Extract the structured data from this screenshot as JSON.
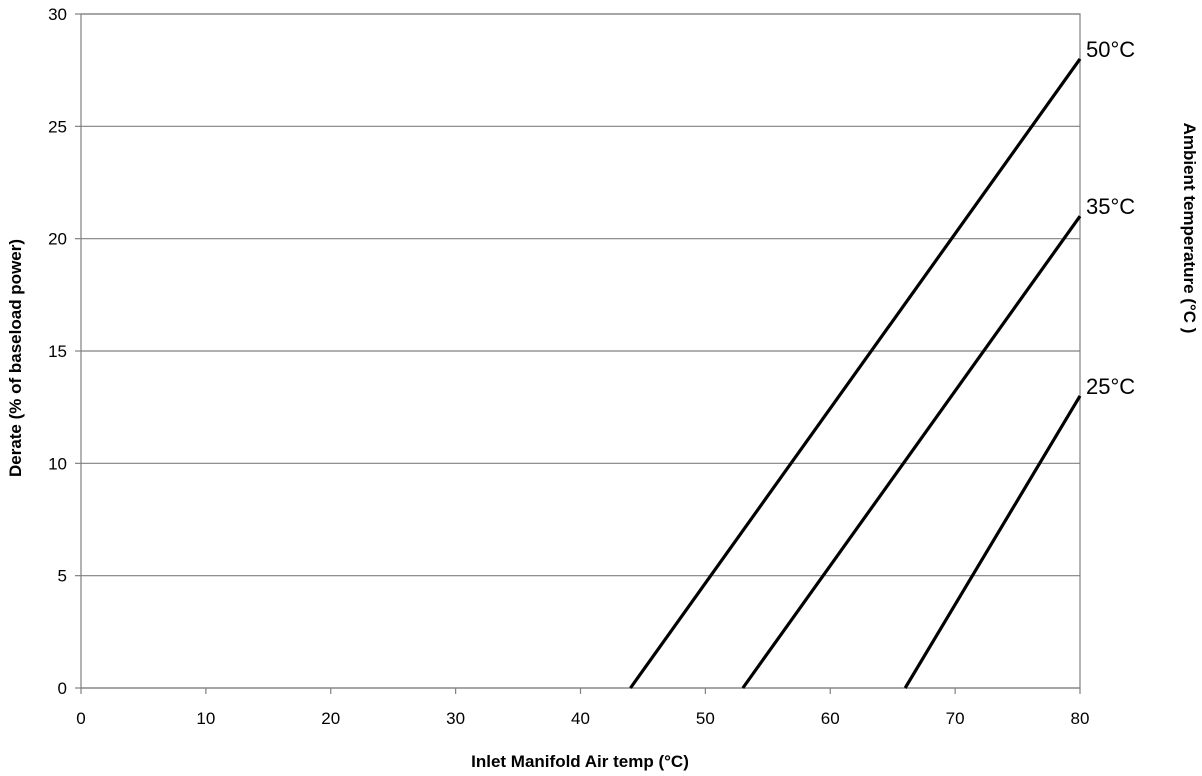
{
  "chart_data": {
    "type": "line",
    "xlabel": "Inlet Manifold Air temp (°C)",
    "ylabel": "Derate (% of baseload power)",
    "y2label": "Ambient temperature (°C  )",
    "xlim": [
      0,
      80
    ],
    "ylim": [
      0,
      30
    ],
    "x_ticks": [
      0,
      10,
      20,
      30,
      40,
      50,
      60,
      70,
      80
    ],
    "y_ticks": [
      0,
      5,
      10,
      15,
      20,
      25,
      30
    ],
    "grid": "horizontal",
    "series": [
      {
        "name": "50°C",
        "x": [
          44,
          80
        ],
        "y": [
          0,
          28
        ]
      },
      {
        "name": "35°C",
        "x": [
          53,
          80
        ],
        "y": [
          0,
          21
        ]
      },
      {
        "name": "25°C",
        "x": [
          66,
          80
        ],
        "y": [
          0,
          13
        ]
      }
    ]
  }
}
